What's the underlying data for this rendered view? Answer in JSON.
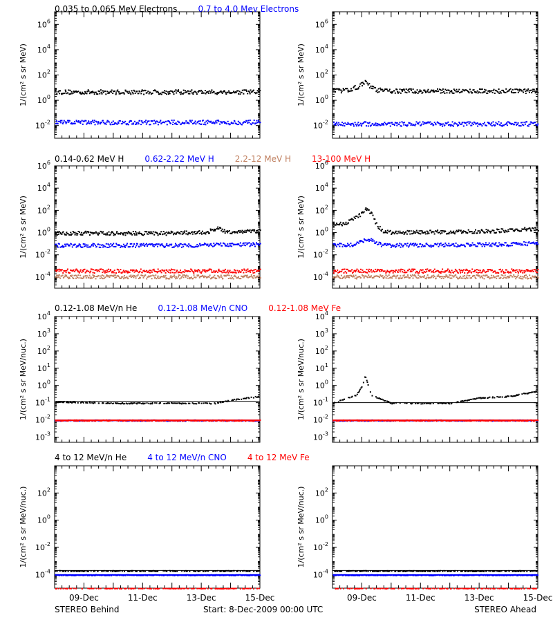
{
  "footer": {
    "left": "STEREO Behind",
    "center": "Start:  8-Dec-2009 00:00 UTC",
    "right": "STEREO Ahead"
  },
  "rows": [
    {
      "ylabel": "1/(cm² s sr MeV)",
      "legend": [
        {
          "text": "0.035 to 0.065 MeV Electrons",
          "color": "#000000"
        },
        {
          "text": "0.7 to 4.0 Mev Electrons",
          "color": "#0000ff"
        }
      ]
    },
    {
      "ylabel": "1/(cm² s sr MeV)",
      "legend": [
        {
          "text": "0.14-0.62 MeV H",
          "color": "#000000"
        },
        {
          "text": "0.62-2.22 MeV H",
          "color": "#0000ff"
        },
        {
          "text": "2.2-12 MeV H",
          "color": "#c08060"
        },
        {
          "text": "13-100 MeV H",
          "color": "#ff0000"
        }
      ]
    },
    {
      "ylabel": "1/(cm² s sr MeV/nuc.)",
      "legend": [
        {
          "text": "0.12-1.08 MeV/n He",
          "color": "#000000"
        },
        {
          "text": "0.12-1.08 MeV/n CNO",
          "color": "#0000ff"
        },
        {
          "text": "0.12-1.08 MeV Fe",
          "color": "#ff0000"
        }
      ]
    },
    {
      "ylabel": "1/(cm² s sr MeV/nuc.)",
      "legend": [
        {
          "text": "4 to 12 MeV/n He",
          "color": "#000000"
        },
        {
          "text": "4 to 12 MeV/n CNO",
          "color": "#0000ff"
        },
        {
          "text": "4 to 12 MeV Fe",
          "color": "#ff0000"
        }
      ]
    }
  ],
  "chart_data": [
    {
      "type": "scatter",
      "panel": "Behind electrons",
      "xlabel": "",
      "x_ticks": [
        "09-Dec",
        "11-Dec",
        "13-Dec",
        "15-Dec"
      ],
      "xlim_days": [
        8,
        15
      ],
      "y_scale": "log",
      "ylim": [
        0.001,
        10000000
      ],
      "y_tick_labels": [
        "10^-2",
        "10^0",
        "10^2",
        "10^4",
        "10^6"
      ],
      "series": [
        {
          "name": "0.035 to 0.065 MeV Electrons",
          "color": "#000000",
          "x": [
            8.0,
            9.0,
            10.0,
            11.0,
            12.0,
            13.0,
            14.0,
            15.0
          ],
          "y": [
            5,
            5,
            5,
            5,
            5,
            5,
            5,
            5
          ]
        },
        {
          "name": "0.7 to 4.0 Mev Electrons",
          "color": "#0000ff",
          "x": [
            8.0,
            9.0,
            10.0,
            11.0,
            12.0,
            13.0,
            14.0,
            15.0
          ],
          "y": [
            0.02,
            0.02,
            0.02,
            0.02,
            0.02,
            0.02,
            0.02,
            0.02
          ]
        }
      ]
    },
    {
      "type": "scatter",
      "panel": "Ahead electrons",
      "xlabel": "",
      "x_ticks": [
        "09-Dec",
        "11-Dec",
        "13-Dec",
        "15-Dec"
      ],
      "xlim_days": [
        8,
        15
      ],
      "y_scale": "log",
      "ylim": [
        0.001,
        10000000
      ],
      "y_tick_labels": [
        "10^-2",
        "10^0",
        "10^2",
        "10^4",
        "10^6"
      ],
      "series": [
        {
          "name": "0.035 to 0.065 MeV Electrons",
          "color": "#000000",
          "x": [
            8.0,
            8.5,
            8.9,
            9.1,
            9.3,
            9.5,
            10.0,
            11.0,
            12.0,
            13.0,
            14.0,
            15.0
          ],
          "y": [
            6,
            7,
            15,
            30,
            12,
            7,
            6,
            6,
            6,
            6,
            6,
            6
          ]
        },
        {
          "name": "0.7 to 4.0 Mev Electrons",
          "color": "#0000ff",
          "x": [
            8.0,
            9.0,
            10.0,
            11.0,
            12.0,
            13.0,
            14.0,
            15.0
          ],
          "y": [
            0.015,
            0.015,
            0.015,
            0.015,
            0.015,
            0.015,
            0.015,
            0.015
          ]
        }
      ]
    },
    {
      "type": "scatter",
      "panel": "Behind protons",
      "xlabel": "",
      "x_ticks": [
        "09-Dec",
        "11-Dec",
        "13-Dec",
        "15-Dec"
      ],
      "xlim_days": [
        8,
        15
      ],
      "y_scale": "log",
      "ylim": [
        1e-05,
        1000000
      ],
      "y_tick_labels": [
        "10^-4",
        "10^-2",
        "10^0",
        "10^2",
        "10^4",
        "10^6"
      ],
      "series": [
        {
          "name": "0.14-0.62 MeV H",
          "color": "#000000",
          "x": [
            8.0,
            10.0,
            12.0,
            13.2,
            13.5,
            13.8,
            15.0
          ],
          "y": [
            1,
            1,
            1,
            1.2,
            3,
            1.3,
            1.6
          ]
        },
        {
          "name": "0.62-2.22 MeV H",
          "color": "#0000ff",
          "x": [
            8.0,
            10.0,
            12.0,
            14.0,
            15.0
          ],
          "y": [
            0.08,
            0.08,
            0.08,
            0.09,
            0.1
          ]
        },
        {
          "name": "2.2-12 MeV H",
          "color": "#c08060",
          "x": [
            8.0,
            11.5,
            15.0
          ],
          "y": [
            0.00012,
            0.00012,
            0.00012
          ]
        },
        {
          "name": "13-100 MeV H",
          "color": "#ff0000",
          "x": [
            8.0,
            11.5,
            15.0
          ],
          "y": [
            0.0004,
            0.0004,
            0.0004
          ]
        }
      ]
    },
    {
      "type": "scatter",
      "panel": "Ahead protons",
      "xlabel": "",
      "x_ticks": [
        "09-Dec",
        "11-Dec",
        "13-Dec",
        "15-Dec"
      ],
      "xlim_days": [
        8,
        15
      ],
      "y_scale": "log",
      "ylim": [
        1e-05,
        1000000
      ],
      "y_tick_labels": [
        "10^-4",
        "10^-2",
        "10^0",
        "10^2",
        "10^4",
        "10^6"
      ],
      "series": [
        {
          "name": "0.14-0.62 MeV H",
          "color": "#000000",
          "x": [
            8.0,
            8.4,
            8.7,
            8.9,
            9.1,
            9.3,
            9.5,
            9.7,
            10.0,
            11.0,
            12.0,
            13.0,
            14.0,
            15.0
          ],
          "y": [
            5,
            8,
            20,
            40,
            150,
            60,
            5,
            1.5,
            1.2,
            1.2,
            1.3,
            1.4,
            1.8,
            2.5
          ]
        },
        {
          "name": "0.62-2.22 MeV H",
          "color": "#0000ff",
          "x": [
            8.0,
            8.8,
            9.0,
            9.2,
            9.6,
            10.0,
            12.0,
            14.0,
            15.0
          ],
          "y": [
            0.08,
            0.1,
            0.2,
            0.3,
            0.1,
            0.08,
            0.09,
            0.1,
            0.13
          ]
        },
        {
          "name": "2.2-12 MeV H",
          "color": "#c08060",
          "x": [
            8.0,
            11.5,
            15.0
          ],
          "y": [
            0.00012,
            0.00012,
            0.00012
          ]
        },
        {
          "name": "13-100 MeV H",
          "color": "#ff0000",
          "x": [
            8.0,
            11.5,
            15.0
          ],
          "y": [
            0.0004,
            0.0004,
            0.0004
          ]
        }
      ]
    },
    {
      "type": "scatter",
      "panel": "Behind low-energy heavy ions",
      "xlabel": "",
      "x_ticks": [
        "09-Dec",
        "11-Dec",
        "13-Dec",
        "15-Dec"
      ],
      "xlim_days": [
        8,
        15
      ],
      "y_scale": "log",
      "ylim": [
        0.0005,
        10000
      ],
      "y_tick_labels": [
        "10^-3",
        "10^-2",
        "10^-1",
        "10^0",
        "10^1",
        "10^2",
        "10^3",
        "10^4"
      ],
      "series": [
        {
          "name": "0.12-1.08 MeV/n He",
          "color": "#000000",
          "x": [
            8.0,
            10.0,
            12.0,
            13.5,
            14.0,
            14.5,
            15.0
          ],
          "y": [
            0.12,
            0.1,
            0.1,
            0.1,
            0.15,
            0.2,
            0.25
          ]
        },
        {
          "name": "0.12-1.08 MeV/n CNO",
          "color": "#0000ff",
          "x": [
            8.0,
            15.0
          ],
          "y": [
            0.01,
            0.01
          ]
        },
        {
          "name": "0.12-1.08 MeV Fe",
          "color": "#ff0000",
          "x": [
            8.0,
            15.0
          ],
          "y": [
            0.01,
            0.01
          ]
        }
      ]
    },
    {
      "type": "scatter",
      "panel": "Ahead low-energy heavy ions",
      "xlabel": "",
      "x_ticks": [
        "09-Dec",
        "11-Dec",
        "13-Dec",
        "15-Dec"
      ],
      "xlim_days": [
        8,
        15
      ],
      "y_scale": "log",
      "ylim": [
        0.0005,
        10000
      ],
      "y_tick_labels": [
        "10^-3",
        "10^-2",
        "10^-1",
        "10^0",
        "10^1",
        "10^2",
        "10^3",
        "10^4"
      ],
      "series": [
        {
          "name": "0.12-1.08 MeV/n He",
          "color": "#000000",
          "x": [
            8.0,
            8.8,
            9.0,
            9.1,
            9.3,
            10.0,
            12.0,
            13.0,
            14.0,
            15.0
          ],
          "y": [
            0.1,
            0.3,
            1.0,
            4.0,
            0.3,
            0.1,
            0.1,
            0.2,
            0.25,
            0.5
          ]
        },
        {
          "name": "0.12-1.08 MeV/n CNO",
          "color": "#0000ff",
          "x": [
            8.0,
            15.0
          ],
          "y": [
            0.01,
            0.01
          ]
        },
        {
          "name": "0.12-1.08 MeV Fe",
          "color": "#ff0000",
          "x": [
            8.0,
            15.0
          ],
          "y": [
            0.01,
            0.01
          ]
        }
      ]
    },
    {
      "type": "scatter",
      "panel": "Behind high-energy heavy ions",
      "xlabel": "",
      "x_ticks": [
        "09-Dec",
        "11-Dec",
        "13-Dec",
        "15-Dec"
      ],
      "xlim_days": [
        8,
        15
      ],
      "y_scale": "log",
      "ylim": [
        1e-05,
        10000
      ],
      "y_tick_labels": [
        "10^-4",
        "10^-2",
        "10^0",
        "10^2"
      ],
      "series": [
        {
          "name": "4 to 12 MeV/n He",
          "color": "#000000",
          "x": [
            8.0,
            11.5,
            15.0
          ],
          "y": [
            0.0002,
            0.0002,
            0.0002
          ]
        },
        {
          "name": "4 to 12 MeV/n CNO",
          "color": "#0000ff",
          "x": [
            8.0,
            15.0
          ],
          "y": [
            0.0001,
            0.0001
          ]
        },
        {
          "name": "4 to 12 MeV Fe",
          "color": "#ff0000",
          "x": [
            8.0,
            15.0
          ],
          "y": [
            1e-05,
            1e-05
          ]
        }
      ]
    },
    {
      "type": "scatter",
      "panel": "Ahead high-energy heavy ions",
      "xlabel": "",
      "x_ticks": [
        "09-Dec",
        "11-Dec",
        "13-Dec",
        "15-Dec"
      ],
      "xlim_days": [
        8,
        15
      ],
      "y_scale": "log",
      "ylim": [
        1e-05,
        10000
      ],
      "y_tick_labels": [
        "10^-4",
        "10^-2",
        "10^0",
        "10^2"
      ],
      "series": [
        {
          "name": "4 to 12 MeV/n He",
          "color": "#000000",
          "x": [
            8.0,
            11.5,
            15.0
          ],
          "y": [
            0.0002,
            0.0002,
            0.0002
          ]
        },
        {
          "name": "4 to 12 MeV/n CNO",
          "color": "#0000ff",
          "x": [
            8.0,
            15.0
          ],
          "y": [
            0.0001,
            0.0001
          ]
        },
        {
          "name": "4 to 12 MeV Fe",
          "color": "#ff0000",
          "x": [
            8.0,
            15.0
          ],
          "y": [
            1e-05,
            1e-05
          ]
        }
      ]
    }
  ]
}
